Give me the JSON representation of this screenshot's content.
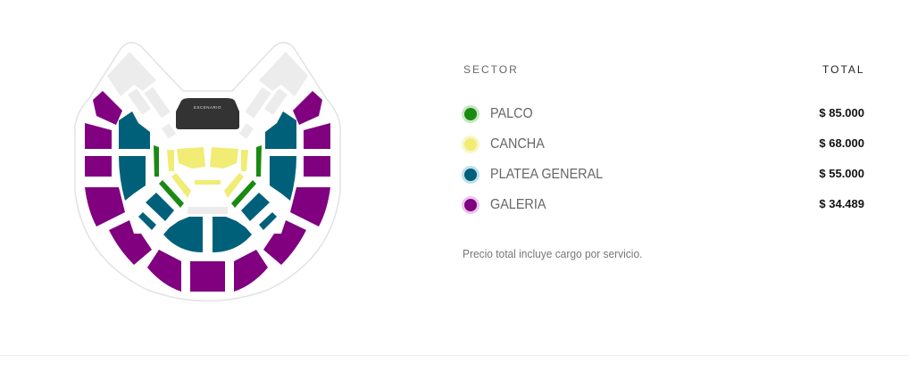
{
  "map": {
    "stage_label": "ESCENARIO",
    "colors": {
      "palco": "#1a8a12",
      "cancha": "#f0ec74",
      "platea": "#00607a",
      "galeria": "#800080",
      "unavailable": "#ececec",
      "stage": "#333333"
    }
  },
  "table": {
    "header_sector": "SECTOR",
    "header_total": "TOTAL",
    "rows": [
      {
        "name": "PALCO",
        "price": "$ 85.000",
        "color": "#1a8a12",
        "halo": "#c8e6c4"
      },
      {
        "name": "CANCHA",
        "price": "$ 68.000",
        "color": "#f0ec74",
        "halo": "#f8f6c8"
      },
      {
        "name": "PLATEA GENERAL",
        "price": "$ 55.000",
        "color": "#00607a",
        "halo": "#bfe0ea"
      },
      {
        "name": "GALERIA",
        "price": "$ 34.489",
        "color": "#800080",
        "halo": "#ecc4ec"
      }
    ],
    "note": "Precio total incluye cargo por servicio."
  }
}
